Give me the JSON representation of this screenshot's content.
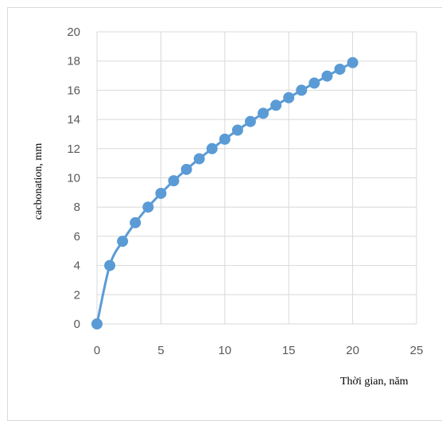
{
  "chart_data": {
    "type": "line",
    "xlabel": "Thời gian, năm",
    "ylabel": "cacbonation, mm",
    "xlim": [
      0,
      25
    ],
    "ylim": [
      0,
      20
    ],
    "x_ticks": [
      0,
      5,
      10,
      15,
      20,
      25
    ],
    "y_ticks": [
      0,
      2,
      4,
      6,
      8,
      10,
      12,
      14,
      16,
      18,
      20
    ],
    "grid": true,
    "legend": "none",
    "series": [
      {
        "color": "#5b9bd5",
        "marker": "circle",
        "x": [
          0,
          1,
          2,
          3,
          4,
          5,
          6,
          7,
          8,
          9,
          10,
          11,
          12,
          13,
          14,
          15,
          16,
          17,
          18,
          19,
          20
        ],
        "y": [
          0,
          4.0,
          5.66,
          6.93,
          8.0,
          8.94,
          9.8,
          10.58,
          11.31,
          12.0,
          12.65,
          13.27,
          13.86,
          14.42,
          14.97,
          15.49,
          16.0,
          16.49,
          16.97,
          17.44,
          17.89
        ]
      }
    ]
  }
}
